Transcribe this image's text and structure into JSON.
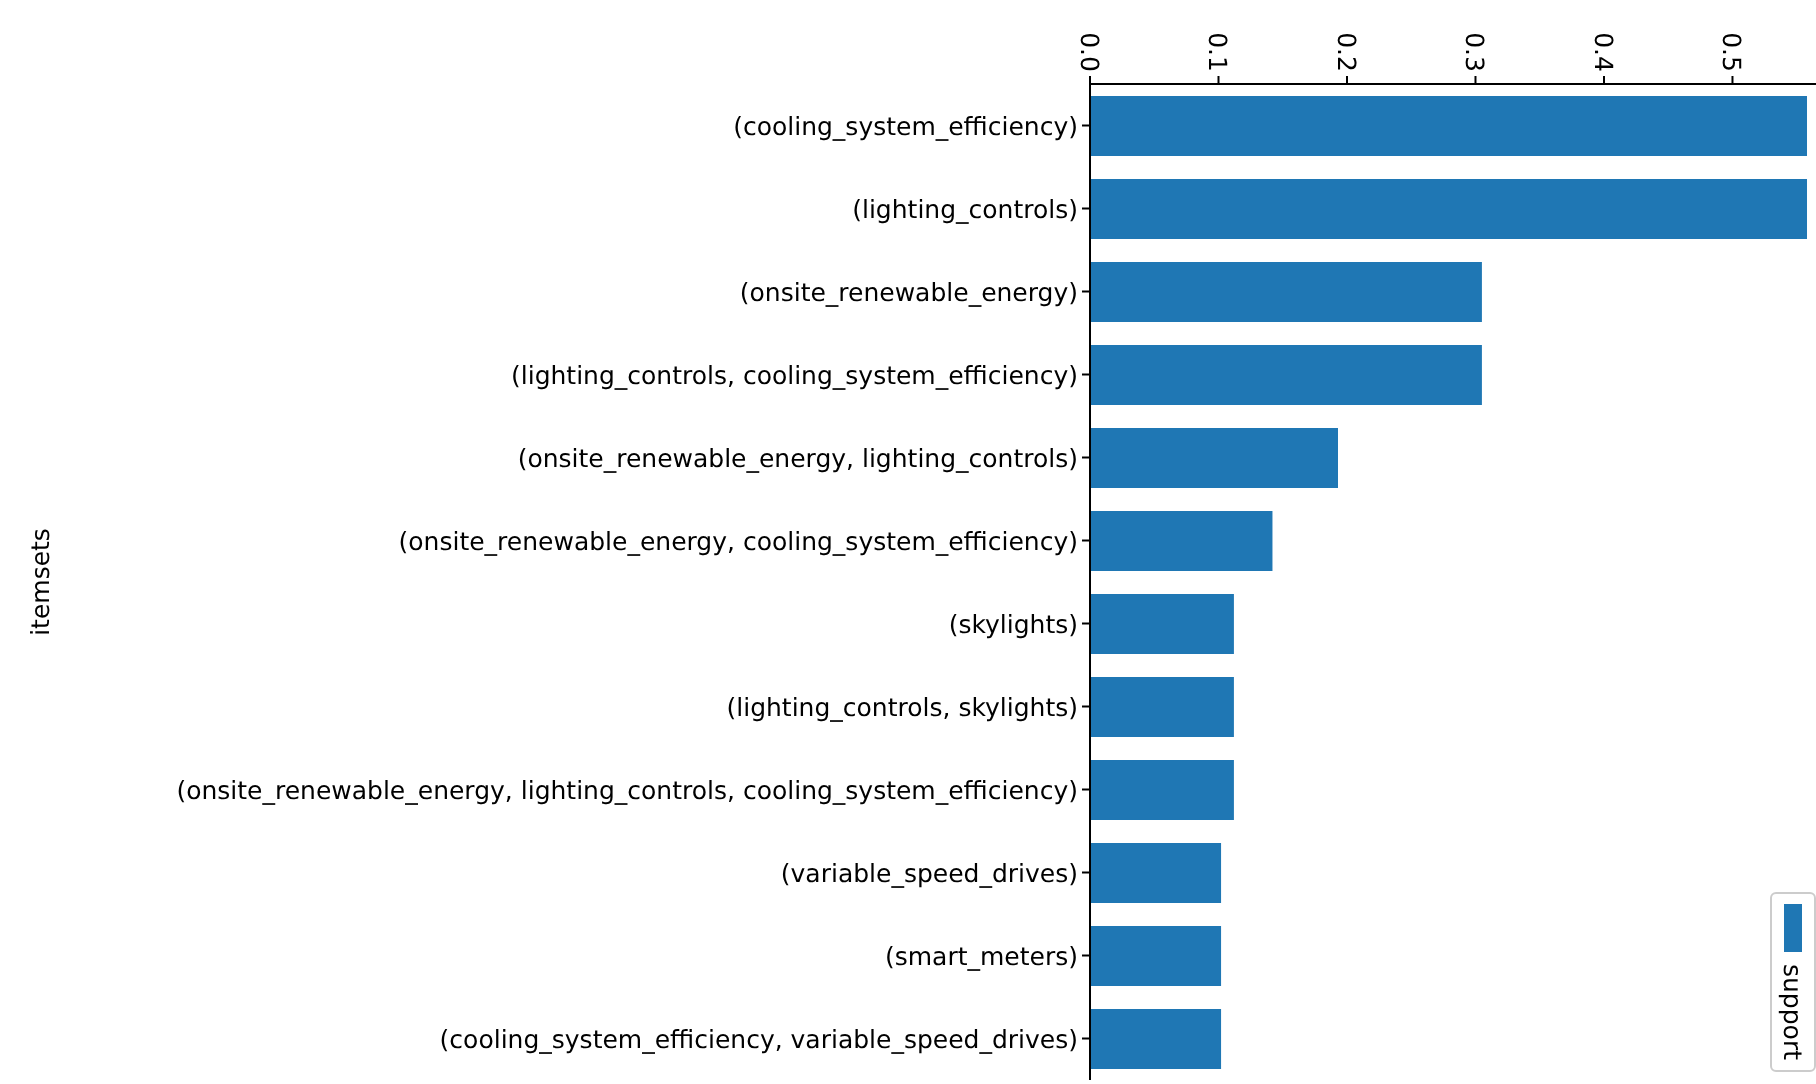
{
  "chart_data": {
    "type": "bar",
    "orientation": "horizontal",
    "ylabel": "itemsets",
    "categories": [
      "(cooling_system_efficiency)",
      "(lighting_controls)",
      "(onsite_renewable_energy)",
      "(lighting_controls, cooling_system_efficiency)",
      "(onsite_renewable_energy, lighting_controls)",
      "(onsite_renewable_energy, cooling_system_efficiency)",
      "(skylights)",
      "(lighting_controls, skylights)",
      "(onsite_renewable_energy, lighting_controls, cooling_system_efficiency)",
      "(variable_speed_drives)",
      "(smart_meters)",
      "(cooling_system_efficiency, variable_speed_drives)"
    ],
    "series": [
      {
        "name": "support",
        "color": "#1f77b4",
        "values": [
          0.558,
          0.558,
          0.305,
          0.305,
          0.193,
          0.142,
          0.112,
          0.112,
          0.112,
          0.102,
          0.102,
          0.102
        ]
      }
    ],
    "xlim": [
      0,
      0.565
    ],
    "xticks": [
      {
        "value": 0,
        "label": "0.0"
      },
      0.1,
      0.2,
      0.3,
      0.4,
      0.5
    ],
    "grid": false,
    "legend": "bottom right"
  }
}
